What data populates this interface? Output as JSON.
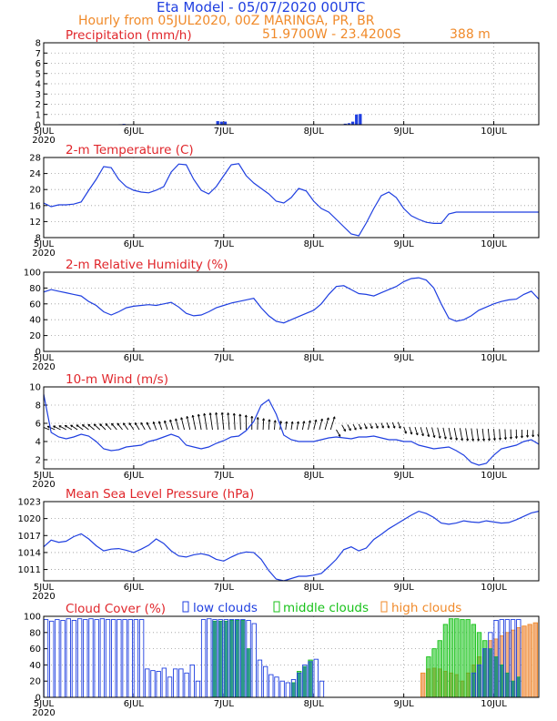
{
  "header": {
    "line1": "Eta Model - 05/07/2020 00UTC",
    "line2_left": "Hourly from 05JUL2020, 00Z   MARINGA, PR, BR",
    "line3_coords": "51.9700W - 23.4200S",
    "line3_elev": "388  m"
  },
  "colors": {
    "blue": "#1f3fe0",
    "orange": "#f08a2a",
    "red": "#e0262b",
    "green": "#18c21a",
    "teal": "#158a8a",
    "peach": "#f3b07e"
  },
  "x_axis": {
    "ticks": [
      "5JUL",
      "6JUL",
      "7JUL",
      "8JUL",
      "9JUL",
      "10JUL"
    ],
    "year": "2020",
    "hours_span": 132
  },
  "chart_data": [
    {
      "id": "precip",
      "type": "bar",
      "title": "Precipitation (mm/h)",
      "ylim": [
        0,
        8
      ],
      "yticks": [
        "0",
        "1",
        "2",
        "3",
        "4",
        "5",
        "6",
        "7",
        "8"
      ],
      "bars": [
        [
          20,
          0.05
        ],
        [
          21,
          0.08
        ],
        [
          22,
          0.05
        ],
        [
          46,
          0.35
        ],
        [
          47,
          0.3
        ],
        [
          48,
          0.3
        ],
        [
          80,
          0.1
        ],
        [
          81,
          0.15
        ],
        [
          82,
          0.3
        ],
        [
          83,
          1.0
        ],
        [
          84,
          1.05
        ]
      ]
    },
    {
      "id": "temp",
      "type": "line",
      "title": "2-m Temperature (C)",
      "ylim": [
        8,
        30
      ],
      "yticks": [
        "8",
        "12",
        "16",
        "20",
        "24",
        "28"
      ],
      "x": [
        0,
        2,
        4,
        6,
        8,
        10,
        12,
        14,
        16,
        18,
        20,
        22,
        24,
        26,
        28,
        30,
        32,
        34,
        36,
        38,
        40,
        42,
        44,
        46,
        48,
        50,
        52,
        54,
        56,
        58,
        60,
        62,
        64,
        66,
        68,
        70,
        72,
        74,
        76,
        78,
        80,
        82,
        84,
        86,
        88,
        90,
        92,
        94,
        96,
        98,
        100,
        102,
        104,
        106,
        108,
        110,
        112,
        114,
        116,
        118,
        120,
        122,
        124,
        126,
        128,
        130,
        132
      ],
      "values": [
        17.5,
        16.5,
        17,
        17,
        17.2,
        17.8,
        21,
        24,
        27.5,
        27.2,
        24,
        22,
        21,
        20.5,
        20.3,
        21,
        22,
        26,
        28.2,
        28,
        24,
        21,
        20,
        22,
        25,
        28,
        28.3,
        25,
        23,
        21.5,
        20,
        18,
        17.5,
        19,
        21.5,
        20.8,
        18,
        16,
        15,
        13,
        11,
        9,
        8.5,
        12,
        16,
        19.5,
        20.5,
        19,
        16,
        14,
        13,
        12.2,
        11.9,
        11.9,
        14.5,
        15,
        15,
        15,
        15,
        15,
        15,
        15,
        15,
        15,
        15,
        15,
        15
      ]
    },
    {
      "id": "rh",
      "type": "line",
      "title": "2-m Relative Humidity (%)",
      "ylim": [
        0,
        100
      ],
      "yticks": [
        "0",
        "20",
        "40",
        "60",
        "80",
        "100"
      ],
      "x": [
        0,
        2,
        4,
        6,
        8,
        10,
        12,
        14,
        16,
        18,
        20,
        22,
        24,
        26,
        28,
        30,
        32,
        34,
        36,
        38,
        40,
        42,
        44,
        46,
        48,
        50,
        52,
        54,
        56,
        58,
        60,
        62,
        64,
        66,
        68,
        70,
        72,
        74,
        76,
        78,
        80,
        82,
        84,
        86,
        88,
        90,
        92,
        94,
        96,
        98,
        100,
        102,
        104,
        106,
        108,
        110,
        112,
        114,
        116,
        118,
        120,
        122,
        124,
        126,
        128,
        130,
        132
      ],
      "values": [
        75,
        78,
        76,
        74,
        72,
        70,
        63,
        58,
        50,
        46,
        50,
        55,
        57,
        58,
        59,
        58,
        60,
        62,
        56,
        48,
        45,
        46,
        50,
        55,
        58,
        61,
        63,
        65,
        67,
        55,
        45,
        38,
        36,
        40,
        44,
        48,
        52,
        60,
        72,
        82,
        83,
        78,
        73,
        72,
        70,
        74,
        78,
        82,
        88,
        92,
        93,
        90,
        80,
        60,
        42,
        38,
        40,
        45,
        52,
        56,
        60,
        63,
        65,
        66,
        72,
        76,
        66
      ]
    },
    {
      "id": "wind",
      "type": "line+barbs",
      "title": "10-m Wind (m/s)",
      "ylim": [
        1,
        10
      ],
      "yticks": [
        "2",
        "4",
        "6",
        "8",
        "10"
      ],
      "x": [
        0,
        2,
        4,
        6,
        8,
        10,
        12,
        14,
        16,
        18,
        20,
        22,
        24,
        26,
        28,
        30,
        32,
        34,
        36,
        38,
        40,
        42,
        44,
        46,
        48,
        50,
        52,
        54,
        56,
        58,
        60,
        62,
        64,
        66,
        68,
        70,
        72,
        74,
        76,
        78,
        80,
        82,
        84,
        86,
        88,
        90,
        92,
        94,
        96,
        98,
        100,
        102,
        104,
        106,
        108,
        110,
        112,
        114,
        116,
        118,
        120,
        122,
        124,
        126,
        128,
        130,
        132
      ],
      "values": [
        9.2,
        5,
        4.5,
        4.3,
        4.5,
        4.8,
        4.6,
        4,
        3.2,
        3,
        3.1,
        3.4,
        3.5,
        3.6,
        4,
        4.2,
        4.5,
        4.8,
        4.5,
        3.6,
        3.4,
        3.2,
        3.4,
        3.8,
        4.1,
        4.5,
        4.6,
        5.2,
        6.2,
        8,
        8.6,
        7,
        4.7,
        4.2,
        4,
        4,
        4,
        4.2,
        4.4,
        4.5,
        4.4,
        4.3,
        4.5,
        4.5,
        4.6,
        4.4,
        4.2,
        4.2,
        4,
        4,
        3.6,
        3.4,
        3.2,
        3.3,
        3.4,
        3,
        2.5,
        1.7,
        1.4,
        1.6,
        2.5,
        3.2,
        3.4,
        3.6,
        4,
        4.2,
        3.7
      ]
    },
    {
      "id": "mslp",
      "type": "line",
      "title": "Mean Sea Level Pressure (hPa)",
      "ylim": [
        1009,
        1023
      ],
      "yticks": [
        "1011",
        "1014",
        "1017",
        "1020",
        "1023"
      ],
      "x": [
        0,
        2,
        4,
        6,
        8,
        10,
        12,
        14,
        16,
        18,
        20,
        22,
        24,
        26,
        28,
        30,
        32,
        34,
        36,
        38,
        40,
        42,
        44,
        46,
        48,
        50,
        52,
        54,
        56,
        58,
        60,
        62,
        64,
        66,
        68,
        70,
        72,
        74,
        76,
        78,
        80,
        82,
        84,
        86,
        88,
        90,
        92,
        94,
        96,
        98,
        100,
        102,
        104,
        106,
        108,
        110,
        112,
        114,
        116,
        118,
        120,
        122,
        124,
        126,
        128,
        130,
        132
      ],
      "values": [
        1015,
        1016.2,
        1015.8,
        1016,
        1016.8,
        1017.3,
        1016.4,
        1015.2,
        1014.3,
        1014.6,
        1014.7,
        1014.4,
        1014,
        1014.6,
        1015.3,
        1016.4,
        1015.6,
        1014.3,
        1013.4,
        1013.2,
        1013.6,
        1013.8,
        1013.5,
        1012.8,
        1012.5,
        1013.2,
        1013.8,
        1014.1,
        1014,
        1012.8,
        1010.8,
        1009.3,
        1009,
        1009.4,
        1009.8,
        1009.8,
        1010,
        1010.3,
        1011.5,
        1012.8,
        1014.5,
        1015,
        1014.3,
        1014.8,
        1016.3,
        1017.2,
        1018.2,
        1019,
        1019.8,
        1020.6,
        1021.3,
        1020.9,
        1020.2,
        1019.2,
        1019,
        1019.2,
        1019.6,
        1019.4,
        1019.3,
        1019.6,
        1019.4,
        1019.2,
        1019.3,
        1019.8,
        1020.4,
        1021,
        1021.3
      ]
    },
    {
      "id": "cloud",
      "type": "bar",
      "title": "Cloud Cover (%)",
      "legend": [
        "low clouds",
        "middle clouds",
        "high clouds"
      ],
      "ylim": [
        0,
        100
      ],
      "yticks": [
        "0",
        "20",
        "40",
        "60",
        "80",
        "100"
      ],
      "low": [
        [
          0,
          96
        ],
        [
          1,
          94
        ],
        [
          2,
          96
        ],
        [
          3,
          95
        ],
        [
          4,
          97
        ],
        [
          5,
          95
        ],
        [
          6,
          97
        ],
        [
          7,
          96
        ],
        [
          8,
          97
        ],
        [
          9,
          96
        ],
        [
          10,
          97
        ],
        [
          11,
          96
        ],
        [
          12,
          96
        ],
        [
          13,
          96
        ],
        [
          14,
          96
        ],
        [
          15,
          96
        ],
        [
          16,
          96
        ],
        [
          17,
          96
        ],
        [
          18,
          35
        ],
        [
          19,
          33
        ],
        [
          20,
          32
        ],
        [
          21,
          36
        ],
        [
          22,
          25
        ],
        [
          23,
          35
        ],
        [
          24,
          35
        ],
        [
          25,
          30
        ],
        [
          26,
          40
        ],
        [
          27,
          20
        ],
        [
          28,
          96
        ],
        [
          29,
          97
        ],
        [
          30,
          96
        ],
        [
          31,
          96
        ],
        [
          32,
          96
        ],
        [
          33,
          96
        ],
        [
          34,
          96
        ],
        [
          35,
          96
        ],
        [
          36,
          95
        ],
        [
          37,
          91
        ],
        [
          38,
          46
        ],
        [
          39,
          38
        ],
        [
          40,
          28
        ],
        [
          41,
          25
        ],
        [
          42,
          20
        ],
        [
          43,
          18
        ],
        [
          44,
          22
        ],
        [
          45,
          30
        ],
        [
          46,
          40
        ],
        [
          47,
          44
        ],
        [
          48,
          47
        ],
        [
          49,
          20
        ],
        [
          76,
          30
        ],
        [
          77,
          40
        ],
        [
          78,
          60
        ],
        [
          79,
          80
        ],
        [
          80,
          95
        ],
        [
          81,
          96
        ],
        [
          82,
          96
        ],
        [
          83,
          96
        ],
        [
          84,
          96
        ]
      ],
      "mid": [
        [
          30,
          94
        ],
        [
          31,
          94
        ],
        [
          32,
          94
        ],
        [
          33,
          95
        ],
        [
          34,
          95
        ],
        [
          35,
          95
        ],
        [
          36,
          60
        ],
        [
          44,
          18
        ],
        [
          45,
          32
        ],
        [
          46,
          38
        ],
        [
          47,
          46
        ],
        [
          68,
          50
        ],
        [
          69,
          60
        ],
        [
          70,
          70
        ],
        [
          71,
          90
        ],
        [
          72,
          97
        ],
        [
          73,
          97
        ],
        [
          74,
          96
        ],
        [
          75,
          96
        ],
        [
          76,
          90
        ],
        [
          77,
          80
        ],
        [
          78,
          70
        ],
        [
          79,
          60
        ],
        [
          80,
          50
        ],
        [
          81,
          40
        ],
        [
          82,
          30
        ],
        [
          83,
          20
        ],
        [
          84,
          25
        ]
      ],
      "high": [
        [
          67,
          30
        ],
        [
          68,
          35
        ],
        [
          69,
          36
        ],
        [
          70,
          35
        ],
        [
          71,
          32
        ],
        [
          72,
          30
        ],
        [
          73,
          28
        ],
        [
          74,
          20
        ],
        [
          75,
          30
        ],
        [
          76,
          40
        ],
        [
          77,
          50
        ],
        [
          78,
          60
        ],
        [
          79,
          70
        ],
        [
          80,
          72
        ],
        [
          81,
          76
        ],
        [
          82,
          80
        ],
        [
          83,
          83
        ],
        [
          84,
          86
        ],
        [
          85,
          88
        ],
        [
          86,
          90
        ],
        [
          87,
          92
        ],
        [
          88,
          95
        ],
        [
          89,
          96
        ],
        [
          90,
          97
        ],
        [
          91,
          98
        ],
        [
          92,
          98
        ],
        [
          93,
          97
        ],
        [
          94,
          97
        ],
        [
          95,
          96
        ],
        [
          96,
          96
        ],
        [
          123,
          38
        ]
      ]
    }
  ]
}
